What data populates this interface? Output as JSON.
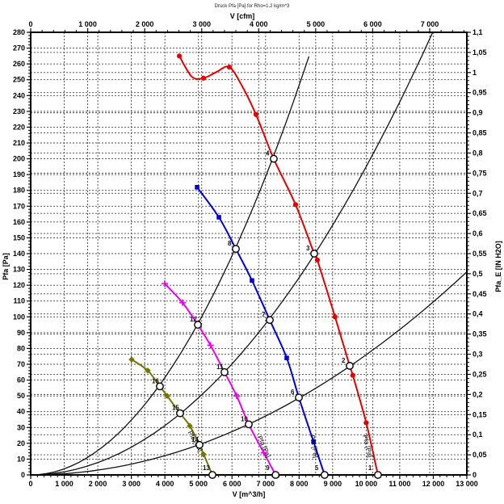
{
  "title": "Druck Pfa [Pa] for Rho=1.2 kg/m^3",
  "chart_data": {
    "type": "line",
    "title": "Druck Pfa [Pa] for Rho=1.2 kg/m^3",
    "grid": {
      "style": "dashed",
      "color": "#444444"
    },
    "axes": {
      "top": {
        "label": "V [cfm]",
        "unit_to_m3h": 1.699,
        "minor_step": 200,
        "ticks": [
          [
            0,
            "0"
          ],
          [
            1000,
            "1 000"
          ],
          [
            2000,
            "2 000"
          ],
          [
            3000,
            "3 000"
          ],
          [
            4000,
            "4 000"
          ],
          [
            5000,
            "5 000"
          ],
          [
            6000,
            "6 000"
          ],
          [
            7000,
            "7 000"
          ]
        ]
      },
      "bottom": {
        "label": "V [m^3/h]",
        "range": [
          0,
          13000
        ],
        "minor_step": 200,
        "ticks": [
          [
            0,
            "0"
          ],
          [
            1000,
            "1 000"
          ],
          [
            2000,
            "2 000"
          ],
          [
            3000,
            "3 000"
          ],
          [
            4000,
            "4 000"
          ],
          [
            5000,
            "5 000"
          ],
          [
            6000,
            "6 000"
          ],
          [
            7000,
            "7 000"
          ],
          [
            8000,
            "8 000"
          ],
          [
            9000,
            "9 000"
          ],
          [
            10000,
            "10 000"
          ],
          [
            11000,
            "11 000"
          ],
          [
            12000,
            "12 000"
          ],
          [
            13000,
            "13 000"
          ]
        ]
      },
      "left": {
        "label": "Pfa [Pa]",
        "range": [
          0,
          280
        ],
        "minor_step": 2,
        "ticks": [
          [
            0,
            "0"
          ],
          [
            10,
            "10"
          ],
          [
            20,
            "20"
          ],
          [
            30,
            "30"
          ],
          [
            40,
            "40"
          ],
          [
            50,
            "50"
          ],
          [
            60,
            "60"
          ],
          [
            70,
            "70"
          ],
          [
            80,
            "80"
          ],
          [
            90,
            "90"
          ],
          [
            100,
            "100"
          ],
          [
            110,
            "110"
          ],
          [
            120,
            "120"
          ],
          [
            130,
            "130"
          ],
          [
            140,
            "140"
          ],
          [
            150,
            "150"
          ],
          [
            160,
            "160"
          ],
          [
            170,
            "170"
          ],
          [
            180,
            "180"
          ],
          [
            190,
            "190"
          ],
          [
            200,
            "200"
          ],
          [
            210,
            "210"
          ],
          [
            220,
            "220"
          ],
          [
            230,
            "230"
          ],
          [
            240,
            "240"
          ],
          [
            250,
            "250"
          ],
          [
            260,
            "260"
          ],
          [
            270,
            "270"
          ],
          [
            280,
            "280"
          ]
        ]
      },
      "right": {
        "label": "Pfa_E [IN H2O]",
        "range": [
          0,
          1.1
        ],
        "minor_step": 0.01,
        "ticks": [
          [
            0,
            "0"
          ],
          [
            0.05,
            "0,05"
          ],
          [
            0.1,
            "0,1"
          ],
          [
            0.15,
            "0,15"
          ],
          [
            0.2,
            "0,2"
          ],
          [
            0.25,
            "0,25"
          ],
          [
            0.3,
            "0,3"
          ],
          [
            0.35,
            "0,35"
          ],
          [
            0.4,
            "0,4"
          ],
          [
            0.45,
            "0,45"
          ],
          [
            0.5,
            "0,5"
          ],
          [
            0.55,
            "0,55"
          ],
          [
            0.6,
            "0,6"
          ],
          [
            0.65,
            "0,65"
          ],
          [
            0.7,
            "0,7"
          ],
          [
            0.75,
            "0,75"
          ],
          [
            0.8,
            "0,8"
          ],
          [
            0.85,
            "0,85"
          ],
          [
            0.9,
            "0,9"
          ],
          [
            0.95,
            "0,95"
          ],
          [
            1,
            "1"
          ],
          [
            1.05,
            "1,05"
          ],
          [
            1.1,
            "1,1"
          ]
        ]
      }
    },
    "series": [
      {
        "name": "fan-curve-1",
        "color": "#e60000",
        "marker": "dot",
        "label": "Pfa [Pa]",
        "label_at": [
          9900,
          25
        ],
        "label_angle": 76,
        "points": [
          [
            4430,
            265
          ],
          [
            4800,
            252
          ],
          [
            5150,
            251
          ],
          [
            5550,
            255
          ],
          [
            5920,
            258
          ],
          [
            6300,
            246
          ],
          [
            6715,
            228
          ],
          [
            7245,
            200
          ],
          [
            7895,
            171
          ],
          [
            8450,
            140
          ],
          [
            8545,
            136
          ],
          [
            9070,
            100
          ],
          [
            9510,
            69
          ],
          [
            9600,
            63
          ],
          [
            10000,
            33
          ],
          [
            10350,
            0
          ]
        ],
        "marker_points": [
          [
            4430,
            265
          ],
          [
            5150,
            251
          ],
          [
            5920,
            258
          ],
          [
            6715,
            228
          ],
          [
            7895,
            171
          ],
          [
            8545,
            136
          ],
          [
            9070,
            100
          ],
          [
            9600,
            63
          ],
          [
            10000,
            33
          ]
        ]
      },
      {
        "name": "fan-curve-2",
        "color": "#0000dd",
        "marker": "square",
        "label": "Pfa [Pa]",
        "label_at": [
          8330,
          25
        ],
        "label_angle": 80,
        "points": [
          [
            4960,
            182
          ],
          [
            5610,
            163
          ],
          [
            6115,
            143
          ],
          [
            6596,
            123
          ],
          [
            7126,
            98
          ],
          [
            7631,
            74
          ],
          [
            7993,
            49
          ],
          [
            8430,
            21
          ],
          [
            8760,
            0
          ]
        ],
        "marker_points": [
          [
            4960,
            182
          ],
          [
            5610,
            163
          ],
          [
            6596,
            123
          ],
          [
            7631,
            74
          ],
          [
            8430,
            21
          ]
        ]
      },
      {
        "name": "fan-curve-3",
        "color": "#ee00ee",
        "marker": "plus",
        "label": "Pfa [Pa]",
        "label_at": [
          6760,
          24
        ],
        "label_angle": 66,
        "points": [
          [
            3996,
            121
          ],
          [
            4525,
            109
          ],
          [
            4983,
            95
          ],
          [
            5360,
            82
          ],
          [
            5777,
            65
          ],
          [
            6140,
            50
          ],
          [
            6499,
            32
          ],
          [
            6950,
            14
          ],
          [
            7300,
            0
          ]
        ],
        "marker_points": [
          [
            3996,
            121
          ],
          [
            4525,
            109
          ],
          [
            5360,
            82
          ],
          [
            6140,
            50
          ],
          [
            6950,
            14
          ]
        ]
      },
      {
        "name": "fan-curve-4",
        "color": "#757500",
        "marker": "diamond",
        "label": "Pfa [Pa]",
        "label_at": [
          4680,
          27
        ],
        "label_angle": 60,
        "points": [
          [
            3009,
            73
          ],
          [
            3490,
            66
          ],
          [
            3851,
            56
          ],
          [
            4068,
            50
          ],
          [
            4453,
            39
          ],
          [
            4742,
            31
          ],
          [
            5031,
            19
          ],
          [
            5416,
            0
          ]
        ],
        "marker_points": [
          [
            3009,
            73
          ],
          [
            3490,
            66
          ],
          [
            4068,
            50
          ],
          [
            4742,
            31
          ],
          [
            5150,
            13
          ]
        ]
      }
    ],
    "system_curves": [
      {
        "name": "system-curve-1",
        "k_pa_per_km3h_sq": 3.85,
        "v_end": 8530
      },
      {
        "name": "system-curve-2",
        "k_pa_per_km3h_sq": 1.95,
        "v_end": 11980
      },
      {
        "name": "system-curve-3",
        "k_pa_per_km3h_sq": 0.76,
        "v_end": 13000
      }
    ],
    "operating_points": [
      {
        "n": "1",
        "v": 10350,
        "p": 0
      },
      {
        "n": "2",
        "v": 9510,
        "p": 69
      },
      {
        "n": "3",
        "v": 8450,
        "p": 140
      },
      {
        "n": "4",
        "v": 7245,
        "p": 200
      },
      {
        "n": "5",
        "v": 8760,
        "p": 0
      },
      {
        "n": "6",
        "v": 7993,
        "p": 49
      },
      {
        "n": "7",
        "v": 7126,
        "p": 98
      },
      {
        "n": "8",
        "v": 6115,
        "p": 143
      },
      {
        "n": "9",
        "v": 7300,
        "p": 0
      },
      {
        "n": "10",
        "v": 6499,
        "p": 32
      },
      {
        "n": "11",
        "v": 5777,
        "p": 65
      },
      {
        "n": "12",
        "v": 4983,
        "p": 95
      },
      {
        "n": "13",
        "v": 5416,
        "p": 0
      },
      {
        "n": "14",
        "v": 5031,
        "p": 19
      },
      {
        "n": "15",
        "v": 4453,
        "p": 39
      },
      {
        "n": "16",
        "v": 3851,
        "p": 56
      }
    ]
  }
}
